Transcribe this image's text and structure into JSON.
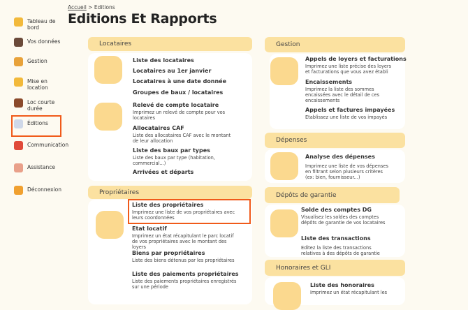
{
  "breadcrumb": {
    "home": "Accueil",
    "sep": ">",
    "current": "Editions"
  },
  "title": "Editions Et Rapports",
  "sidebar": [
    {
      "label": "Tableau de bord",
      "icon": "keys-icon"
    },
    {
      "label": "Vos données",
      "icon": "user-icon"
    },
    {
      "label": "Gestion",
      "icon": "folder-icon"
    },
    {
      "label": "Mise en location",
      "icon": "keys-house-icon"
    },
    {
      "label": "Loc courte durée",
      "icon": "suitcase-icon"
    },
    {
      "label": "Éditions",
      "icon": "document-icon"
    },
    {
      "label": "Communication",
      "icon": "chat-icon"
    },
    {
      "label": "Assistance",
      "icon": "support-icon"
    },
    {
      "label": "Déconnexion",
      "icon": "logout-icon"
    }
  ],
  "locataires": {
    "header": "Locataires",
    "items": [
      {
        "title": "Liste des locataires"
      },
      {
        "title": "Locataires au 1er janvier"
      },
      {
        "title": "Locataires à une date donnée"
      },
      {
        "title": "Groupes de baux / locataires"
      },
      {
        "title": "Relevé de compte locataire",
        "desc": "Imprimez un relevé de compte pour vos locataires"
      },
      {
        "title": "Allocataires CAF",
        "desc": "Liste des allocataires CAF avec le montant de leur allocation"
      },
      {
        "title": "Liste des baux par types",
        "desc": "Liste des baux par type (habitation, commercial...)"
      },
      {
        "title": "Arrivées et départs"
      }
    ]
  },
  "proprietaires": {
    "header": "Propriétaires",
    "items": [
      {
        "title": "Liste des propriétaires",
        "desc": "Imprimez une liste de vos propriétaires avec leurs coordonnées"
      },
      {
        "title": "Etat locatif",
        "desc": "Imprimez un état récapitulant le parc locatif de vos propriétaires avec le montant des loyers"
      },
      {
        "title": "Biens par propriétaires",
        "desc": "Liste des biens détenus par les propriétaires"
      },
      {
        "title": "Liste des paiements propriétaires",
        "desc": "Liste des paiements propriétaires enregistrés sur une période"
      }
    ]
  },
  "gestion": {
    "header": "Gestion",
    "items": [
      {
        "title": "Appels de loyers et facturations",
        "desc": "Imprimez une liste précise des loyers et facturations que vous avez établi"
      },
      {
        "title": "Encaissements",
        "desc": "Imprimez la liste des sommes encaissées avec le détail de ces encaissements"
      },
      {
        "title": "Appels et factures impayées",
        "desc": "Etablissez une liste de vos impayés"
      }
    ]
  },
  "depenses": {
    "header": "Dépenses",
    "items": [
      {
        "title": "Analyse des dépenses",
        "desc": "Imprimez une liste de vos dépenses en filtrant selon plusieurs critères (ex: bien, fournisseur...)"
      }
    ]
  },
  "depots": {
    "header": "Dépôts de garantie",
    "items": [
      {
        "title": "Solde des comptes DG",
        "desc": "Visualisez les soldes des comptes dépôts de garantie de vos locataires"
      },
      {
        "title": "Liste des transactions",
        "desc": "Editez la liste des transactions relatives à des dépôts de garantie"
      }
    ]
  },
  "honoraires": {
    "header": "Honoraires et GLI",
    "items": [
      {
        "title": "Liste des honoraires",
        "desc": "Imprimez un état récapitulant les"
      }
    ]
  }
}
